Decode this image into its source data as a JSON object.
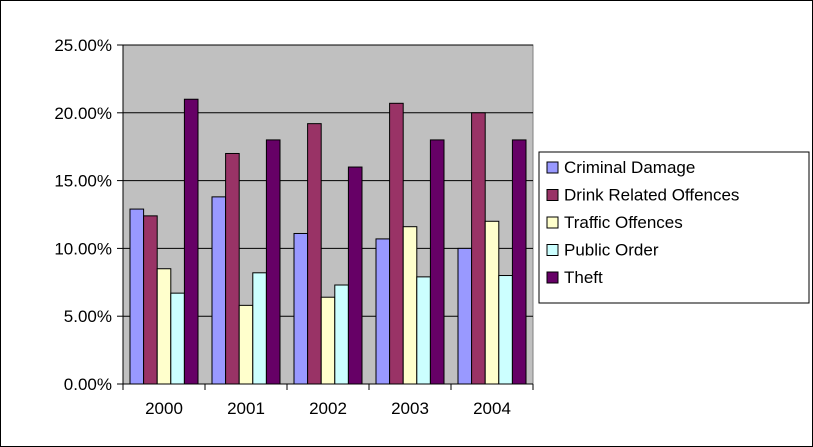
{
  "chart_data": {
    "type": "bar",
    "title": "",
    "xlabel": "",
    "ylabel": "",
    "categories": [
      "2000",
      "2001",
      "2002",
      "2003",
      "2004"
    ],
    "ylim": [
      0,
      0.25
    ],
    "yticks": [
      0,
      0.05,
      0.1,
      0.15,
      0.2,
      0.25
    ],
    "ytick_labels": [
      "0.00%",
      "5.00%",
      "10.00%",
      "15.00%",
      "20.00%",
      "25.00%"
    ],
    "grid": true,
    "plot_background": "#c0c0c0",
    "legend_position": "right",
    "series": [
      {
        "name": "Criminal Damage",
        "color": "#9999ff",
        "values": [
          0.129,
          0.138,
          0.111,
          0.107,
          0.1
        ]
      },
      {
        "name": "Drink Related Offences",
        "color": "#993366",
        "values": [
          0.124,
          0.17,
          0.192,
          0.207,
          0.2
        ]
      },
      {
        "name": "Traffic Offences",
        "color": "#ffffcc",
        "values": [
          0.085,
          0.058,
          0.064,
          0.116,
          0.12
        ]
      },
      {
        "name": "Public Order",
        "color": "#ccffff",
        "values": [
          0.067,
          0.082,
          0.073,
          0.079,
          0.08
        ]
      },
      {
        "name": "Theft",
        "color": "#660066",
        "values": [
          0.21,
          0.18,
          0.16,
          0.18,
          0.18
        ]
      }
    ]
  }
}
